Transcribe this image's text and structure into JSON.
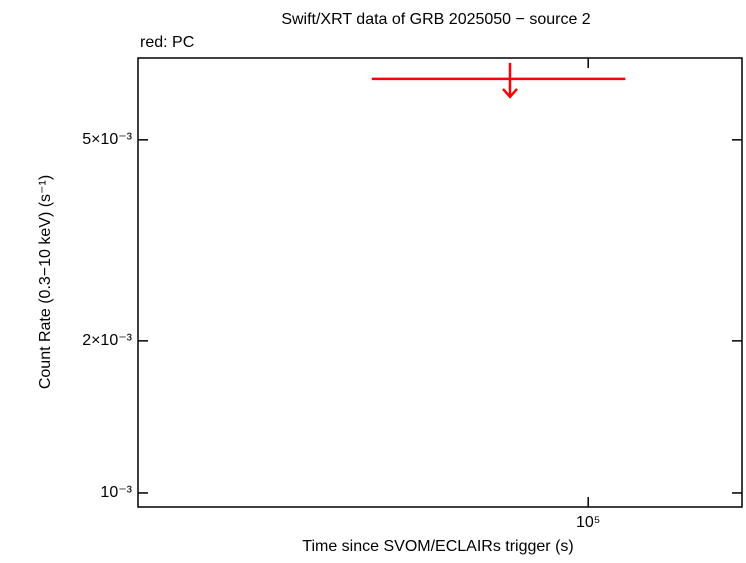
{
  "chart_data": {
    "type": "scatter",
    "title": "Swift/XRT data of GRB 2025050 − source 2",
    "subtitle": "red: PC",
    "x_label": "Time since SVOM/ECLAIRs trigger (s)",
    "y_label": "Count Rate (0.3−10 keV) (s⁻¹)",
    "xscale": "log",
    "yscale": "log",
    "xlim": [
      26700,
      157000
    ],
    "ylim": [
      0.000938,
      0.00726
    ],
    "xticks": [
      {
        "value": 100000,
        "label": "10⁵"
      }
    ],
    "yticks": [
      {
        "value": 0.001,
        "label": "10⁻³"
      },
      {
        "value": 0.002,
        "label": "2×10⁻³"
      },
      {
        "value": 0.005,
        "label": "5×10⁻³"
      }
    ],
    "series": [
      {
        "name": "PC",
        "color": "#ff0000",
        "x": [
          79500
        ],
        "x_lower": [
          53000
        ],
        "x_upper": [
          111500
        ],
        "values": [
          0.0066
        ],
        "upper_limit": true
      }
    ]
  }
}
